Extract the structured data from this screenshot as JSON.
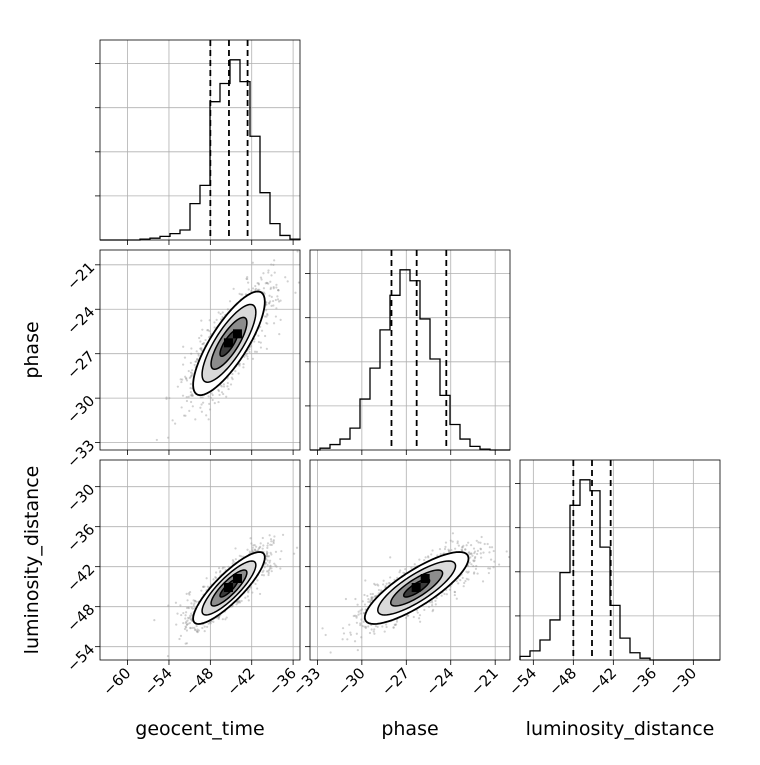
{
  "chart_data": {
    "type": "corner",
    "parameters": [
      {
        "name": "geocent_time",
        "xlabel": "geocent_time",
        "ticks": [
          -60,
          -54,
          -48,
          -42,
          -36
        ],
        "range": [
          -64,
          -35
        ],
        "median": -45.3,
        "q16": -48.0,
        "q84": -42.6
      },
      {
        "name": "phase",
        "xlabel": "phase",
        "ylabel": "phase",
        "ticks": [
          -33,
          -30,
          -27,
          -24,
          -21
        ],
        "range": [
          -33.5,
          -20
        ],
        "median": -26.3,
        "q16": -28.0,
        "q84": -24.3
      },
      {
        "name": "luminosity_distance",
        "xlabel": "luminosity_distance",
        "ylabel": "luminosity_distance",
        "ticks": [
          -54,
          -48,
          -42,
          -36,
          -30
        ],
        "range": [
          -56,
          -26
        ],
        "median": -45.2,
        "q16": -48.0,
        "q84": -42.4
      }
    ],
    "histograms": [
      {
        "param": "geocent_time",
        "bin_edges": [
          -64,
          -62.55,
          -61.1,
          -59.65,
          -58.2,
          -56.75,
          -55.3,
          -53.85,
          -52.4,
          -50.95,
          -49.5,
          -48.05,
          -46.6,
          -45.15,
          -43.7,
          -42.25,
          -40.8,
          -39.35,
          -37.9,
          -36.45,
          -35
        ],
        "counts": [
          0,
          0,
          0,
          0,
          0.005,
          0.01,
          0.02,
          0.035,
          0.055,
          0.2,
          0.3,
          0.76,
          0.86,
          0.99,
          0.87,
          0.57,
          0.26,
          0.09,
          0.025,
          0.005
        ]
      },
      {
        "param": "phase",
        "bin_edges": [
          -33.5,
          -32.825,
          -32.15,
          -31.475,
          -30.8,
          -30.125,
          -29.45,
          -28.775,
          -28.1,
          -27.425,
          -26.75,
          -26.075,
          -25.4,
          -24.725,
          -24.05,
          -23.375,
          -22.7,
          -22.025,
          -21.35,
          -20.675,
          -20
        ],
        "counts": [
          0,
          0.01,
          0.03,
          0.06,
          0.12,
          0.28,
          0.45,
          0.66,
          0.85,
          0.99,
          0.93,
          0.72,
          0.5,
          0.3,
          0.14,
          0.06,
          0.02,
          0.005,
          0,
          0
        ]
      },
      {
        "param": "luminosity_distance",
        "bin_edges": [
          -56,
          -54.5,
          -53,
          -51.5,
          -50,
          -48.5,
          -47,
          -45.5,
          -44,
          -42.5,
          -41,
          -39.5,
          -38,
          -36.5,
          -35,
          -33.5,
          -32,
          -30.5,
          -29,
          -27.5,
          -26
        ],
        "counts": [
          0.02,
          0.05,
          0.11,
          0.22,
          0.48,
          0.85,
          0.99,
          0.93,
          0.62,
          0.3,
          0.12,
          0.04,
          0.01,
          0,
          0,
          0,
          0,
          0,
          0,
          0
        ]
      }
    ],
    "joint_2d": [
      {
        "x": "geocent_time",
        "y": "phase",
        "mean": [
          -45.3,
          -26.3
        ],
        "sd": [
          2.6,
          1.75
        ],
        "corr": 0.8,
        "contour_levels_sigma": [
          0.5,
          1.0,
          1.5,
          2.0
        ]
      },
      {
        "x": "geocent_time",
        "y": "luminosity_distance",
        "mean": [
          -45.3,
          -45.2
        ],
        "sd": [
          2.6,
          2.7
        ],
        "corr": 0.85,
        "contour_levels_sigma": [
          0.5,
          1.0,
          1.5,
          2.0
        ]
      },
      {
        "x": "phase",
        "y": "luminosity_distance",
        "mean": [
          -26.3,
          -45.2
        ],
        "sd": [
          1.75,
          2.7
        ],
        "corr": 0.82,
        "contour_levels_sigma": [
          0.5,
          1.0,
          1.5,
          2.0
        ]
      }
    ],
    "grid": true,
    "colors": {
      "line": "#000000",
      "grid": "#b0b0b0",
      "points": "#9a9a9a",
      "fill_light": "#d9d9d9",
      "fill_mid": "#8c8c8c",
      "fill_dark": "#3a3a3a"
    }
  }
}
